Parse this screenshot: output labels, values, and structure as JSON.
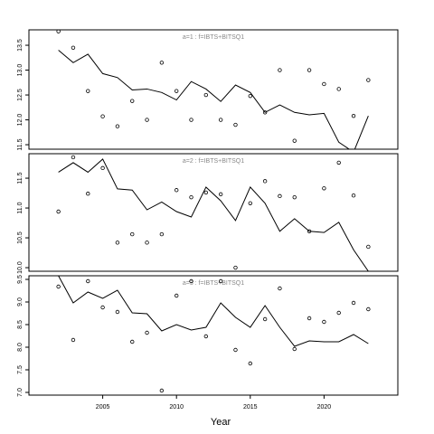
{
  "chart_data": [
    {
      "type": "line",
      "annotation": "a=1  :  f=IBTS+BITSQ1",
      "x": [
        2002,
        2003,
        2004,
        2005,
        2006,
        2007,
        2008,
        2009,
        2010,
        2011,
        2012,
        2013,
        2014,
        2015,
        2016,
        2017,
        2018,
        2019,
        2020,
        2021,
        2022,
        2023
      ],
      "values": [
        13.4,
        13.15,
        13.32,
        12.93,
        12.85,
        12.6,
        12.62,
        12.55,
        12.4,
        12.77,
        12.62,
        12.37,
        12.7,
        12.55,
        12.15,
        12.3,
        12.15,
        12.1,
        12.13,
        11.55,
        11.35,
        12.08
      ],
      "points": [
        13.78,
        13.45,
        12.58,
        12.07,
        11.87,
        12.38,
        12.0,
        13.15,
        12.58,
        12.0,
        12.5,
        12.0,
        11.9,
        12.48,
        12.15,
        13.0,
        11.58,
        13.0,
        12.72,
        12.62,
        12.08,
        12.8
      ],
      "xlim": [
        2000,
        2025
      ],
      "ylim": [
        11.41,
        13.81
      ],
      "yticks": [
        11.5,
        {
          "value": 12,
          "label": "12.0"
        },
        12.5,
        {
          "value": 13,
          "label": "13.0"
        },
        13.5
      ]
    },
    {
      "type": "line",
      "annotation": "a=2  :  f=IBTS+BITSQ1",
      "x": [
        2002,
        2003,
        2004,
        2005,
        2006,
        2007,
        2008,
        2009,
        2010,
        2011,
        2012,
        2013,
        2014,
        2015,
        2016,
        2017,
        2018,
        2019,
        2020,
        2021,
        2022,
        2023
      ],
      "values": [
        11.6,
        11.76,
        11.6,
        11.82,
        11.32,
        11.3,
        10.97,
        11.1,
        10.94,
        10.85,
        11.35,
        11.12,
        10.79,
        11.35,
        11.08,
        10.61,
        10.82,
        10.61,
        10.59,
        10.76,
        10.3,
        9.94
      ],
      "points": [
        10.94,
        11.85,
        11.24,
        11.67,
        10.42,
        10.56,
        10.42,
        10.56,
        11.3,
        11.18,
        11.26,
        11.23,
        10.0,
        11.08,
        11.45,
        11.2,
        11.18,
        10.61,
        11.33,
        11.76,
        11.21,
        10.35
      ],
      "xlim": [
        2000,
        2025
      ],
      "ylim": [
        9.94,
        11.91
      ],
      "yticks": [
        {
          "value": 10,
          "label": "10.0"
        },
        10.5,
        {
          "value": 11,
          "label": "11.0"
        },
        11.5
      ]
    },
    {
      "type": "line",
      "annotation": "a=3  :  f=IBTS+BITSQ1",
      "x": [
        2002,
        2003,
        2004,
        2005,
        2006,
        2007,
        2008,
        2009,
        2010,
        2011,
        2012,
        2013,
        2014,
        2015,
        2016,
        2017,
        2018,
        2019,
        2020,
        2021,
        2022,
        2023
      ],
      "values": [
        9.58,
        8.98,
        9.22,
        9.08,
        9.26,
        8.76,
        8.74,
        8.36,
        8.5,
        8.38,
        8.44,
        8.98,
        8.66,
        8.44,
        8.92,
        8.44,
        8.02,
        8.14,
        8.12,
        8.12,
        8.28,
        8.08
      ],
      "points": [
        9.34,
        8.16,
        9.46,
        8.88,
        8.78,
        8.12,
        8.32,
        7.04,
        9.14,
        9.46,
        8.24,
        9.46,
        7.94,
        7.64,
        8.62,
        9.3,
        7.96,
        8.64,
        8.56,
        8.76,
        8.98,
        8.84
      ],
      "xlim": [
        2000,
        2025
      ],
      "ylim": [
        6.94,
        9.58
      ],
      "yticks": [
        {
          "value": 7,
          "label": "7.0"
        },
        7.5,
        {
          "value": 8,
          "label": "8.0"
        },
        8.5,
        {
          "value": 9,
          "label": "9.0"
        },
        9.5
      ],
      "xticks": [
        2005,
        2010,
        2015,
        2020
      ],
      "xlabel": "Year"
    }
  ]
}
